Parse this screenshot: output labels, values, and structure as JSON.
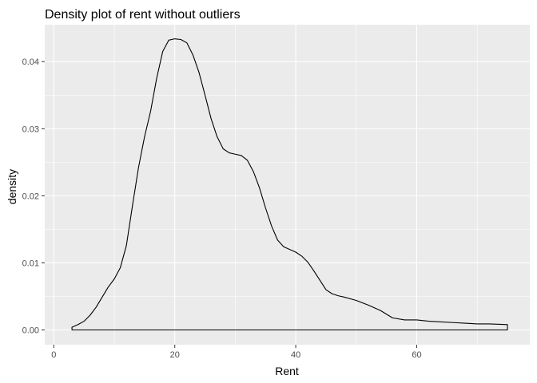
{
  "chart_data": {
    "type": "area",
    "title": "Density plot of rent without outliers",
    "xlabel": "Rent",
    "ylabel": "density",
    "xlim": [
      -1.5,
      78.7
    ],
    "ylim": [
      -0.0022,
      0.0455
    ],
    "xticks": [
      0,
      20,
      40,
      60
    ],
    "yticks": [
      0.0,
      0.01,
      0.02,
      0.03,
      0.04
    ],
    "ytick_labels": [
      "0.00",
      "0.01",
      "0.02",
      "0.03",
      "0.04"
    ],
    "grid": true,
    "panel_background": "#ebebeb",
    "grid_color": "#ffffff",
    "line_color": "#000000",
    "fill": "none",
    "series": [
      {
        "x": [
          3,
          4,
          5,
          6,
          7,
          8,
          9,
          10,
          11,
          12,
          13,
          14,
          15,
          16,
          17,
          18,
          19,
          20,
          21,
          22,
          23,
          24,
          25,
          26,
          27,
          28,
          29,
          30,
          31,
          32,
          33,
          34,
          35,
          36,
          37,
          38,
          39,
          40,
          41,
          42,
          43,
          44,
          45,
          46,
          47,
          48,
          50,
          52,
          54,
          56,
          58,
          60,
          62,
          64,
          66,
          68,
          70,
          72,
          75
        ],
        "y": [
          0.0004,
          0.0008,
          0.0013,
          0.0022,
          0.0034,
          0.0049,
          0.0064,
          0.0076,
          0.0093,
          0.0126,
          0.0185,
          0.0242,
          0.0288,
          0.0326,
          0.0375,
          0.0415,
          0.0432,
          0.0434,
          0.0433,
          0.0428,
          0.041,
          0.0384,
          0.035,
          0.0315,
          0.0288,
          0.027,
          0.0264,
          0.0262,
          0.026,
          0.0253,
          0.0236,
          0.0212,
          0.0182,
          0.0155,
          0.0134,
          0.0124,
          0.012,
          0.0116,
          0.011,
          0.0101,
          0.0088,
          0.0074,
          0.006,
          0.0054,
          0.0051,
          0.0049,
          0.0044,
          0.0037,
          0.0029,
          0.0018,
          0.0015,
          0.0015,
          0.0013,
          0.0012,
          0.0011,
          0.001,
          0.0009,
          0.0009,
          0.0008
        ]
      }
    ]
  }
}
